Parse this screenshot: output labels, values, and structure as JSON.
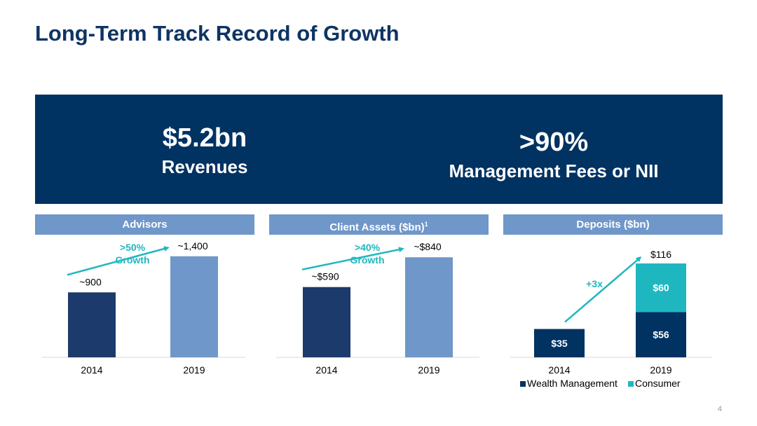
{
  "title": "Long-Term Track Record of Growth",
  "kpis": [
    {
      "value": "$5.2bn",
      "label": "Revenues"
    },
    {
      "value": ">90%",
      "label": "Management Fees or NII"
    }
  ],
  "panels": {
    "advisors": {
      "header": "Advisors",
      "growth_line1": ">50%",
      "growth_line2": "Growth"
    },
    "client_assets": {
      "header": "Client Assets ($bn)",
      "header_sup": "1",
      "growth_line1": ">40%",
      "growth_line2": "Growth"
    },
    "deposits": {
      "header": "Deposits ($bn)",
      "growth": "+3x"
    }
  },
  "colors": {
    "navy": "#003262",
    "bar_dark": "#1c3a6b",
    "bar_light": "#6f97c9",
    "teal": "#1fb7bf"
  },
  "page_number": "4",
  "chart_data": [
    {
      "type": "bar",
      "title": "Advisors",
      "categories": [
        "2014",
        "2019"
      ],
      "values": [
        900,
        1400
      ],
      "data_labels": [
        "~900",
        "~1,400"
      ],
      "ylim": [
        0,
        1650
      ],
      "annotation": ">50% Growth"
    },
    {
      "type": "bar",
      "title": "Client Assets ($bn)",
      "categories": [
        "2014",
        "2019"
      ],
      "values": [
        590,
        840
      ],
      "data_labels": [
        "~$590",
        "~$840"
      ],
      "ylim": [
        0,
        1000
      ],
      "annotation": ">40% Growth"
    },
    {
      "type": "bar",
      "stacked": true,
      "title": "Deposits ($bn)",
      "categories": [
        "2014",
        "2019"
      ],
      "series": [
        {
          "name": "Wealth Management",
          "values": [
            35,
            56
          ],
          "labels": [
            "$35",
            "$56"
          ]
        },
        {
          "name": "Consumer",
          "values": [
            0,
            60
          ],
          "labels": [
            "",
            "$60"
          ]
        }
      ],
      "totals": [
        35,
        116
      ],
      "total_labels": [
        "",
        "$116"
      ],
      "ylim": [
        0,
        137
      ],
      "legend": "bottom",
      "annotation": "+3x"
    }
  ]
}
